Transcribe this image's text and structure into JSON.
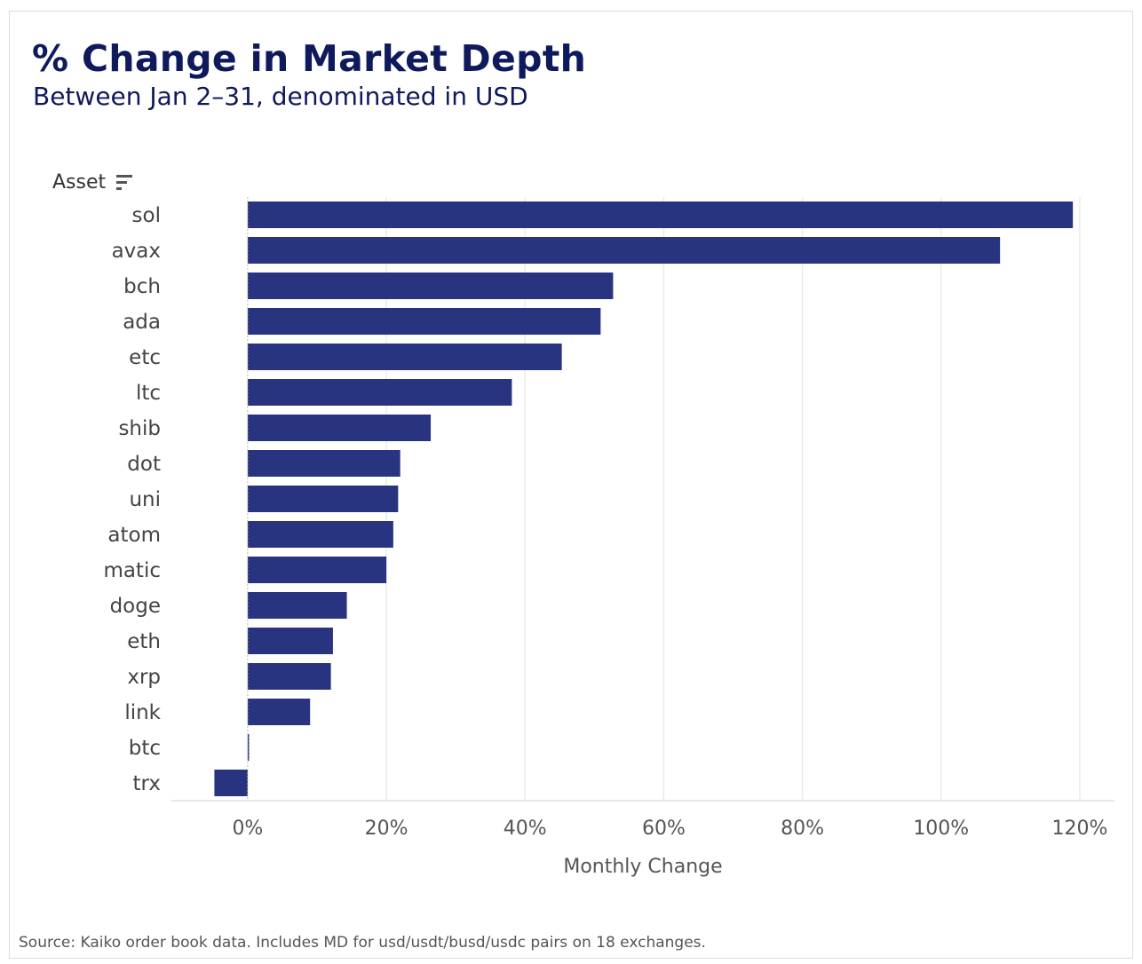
{
  "header": {
    "title": "% Change in Market Depth",
    "subtitle": "Between Jan 2–31, denominated in USD"
  },
  "y_axis_header": "Asset",
  "footer": {
    "source": "Source: Kaiko order book data. Includes MD for usd/usdt/busd/usdc pairs on 18 exchanges."
  },
  "colors": {
    "bar": "#283480",
    "title": "#0f1a5c",
    "grid": "#ebebeb"
  },
  "chart_data": {
    "type": "bar",
    "orientation": "horizontal",
    "title": "% Change in Market Depth",
    "subtitle": "Between Jan 2–31, denominated in USD",
    "xlabel": "Monthly Change",
    "ylabel": "Asset",
    "categories": [
      "sol",
      "avax",
      "bch",
      "ada",
      "etc",
      "ltc",
      "shib",
      "dot",
      "uni",
      "atom",
      "matic",
      "doge",
      "eth",
      "xrp",
      "link",
      "btc",
      "trx"
    ],
    "values": [
      119,
      108.5,
      52.7,
      50.9,
      45.3,
      38.1,
      26.4,
      22.0,
      21.7,
      21.0,
      20.0,
      14.3,
      12.3,
      12.0,
      9.0,
      0.2,
      -4.8
    ],
    "unit": "%",
    "xlim": [
      -11,
      125
    ],
    "xticks": [
      0,
      20,
      40,
      60,
      80,
      100,
      120
    ],
    "xtick_labels": [
      "0%",
      "20%",
      "40%",
      "60%",
      "80%",
      "100%",
      "120%"
    ],
    "grid": true,
    "legend": "none"
  }
}
